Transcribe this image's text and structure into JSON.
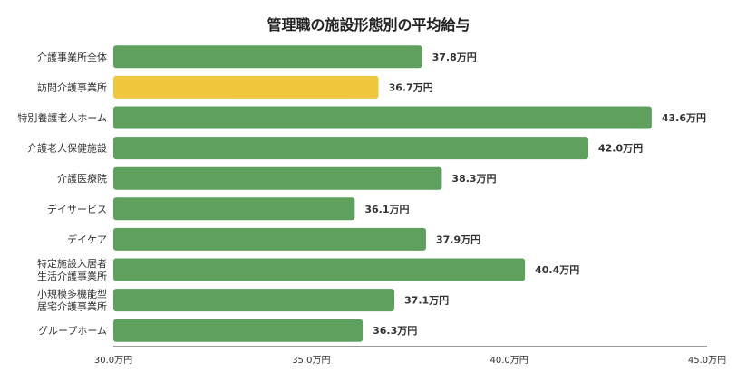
{
  "chart_data": {
    "type": "bar",
    "orientation": "horizontal",
    "title": "管理職の施設形態別の平均給与",
    "categories": [
      [
        "介護事業所全体"
      ],
      [
        "訪問介護事業所"
      ],
      [
        "特別養護老人ホーム"
      ],
      [
        "介護老人保健施設"
      ],
      [
        "介護医療院"
      ],
      [
        "デイサービス"
      ],
      [
        "デイケア"
      ],
      [
        "特定施設入居者",
        "生活介護事業所"
      ],
      [
        "小規模多機能型",
        "居宅介護事業所"
      ],
      [
        "グループホーム"
      ]
    ],
    "values": [
      37.8,
      36.7,
      43.6,
      42.0,
      38.3,
      36.1,
      37.9,
      40.4,
      37.1,
      36.3
    ],
    "value_labels": [
      "37.8万円",
      "36.7万円",
      "43.6万円",
      "42.0万円",
      "38.3万円",
      "36.1万円",
      "37.9万円",
      "40.4万円",
      "37.1万円",
      "36.3万円"
    ],
    "bar_colors": [
      "#5fa05f",
      "#f0c840",
      "#5fa05f",
      "#5fa05f",
      "#5fa05f",
      "#5fa05f",
      "#5fa05f",
      "#5fa05f",
      "#5fa05f",
      "#5fa05f"
    ],
    "xlim": [
      30.0,
      45.0
    ],
    "x_ticks": [
      30.0,
      35.0,
      40.0,
      45.0
    ],
    "x_tick_labels": [
      "30.0万円",
      "35.0万円",
      "40.0万円",
      "45.0万円"
    ],
    "grid": false,
    "xlabel": "",
    "ylabel": ""
  },
  "colors": {
    "axis": "#333333",
    "text": "#333333"
  }
}
